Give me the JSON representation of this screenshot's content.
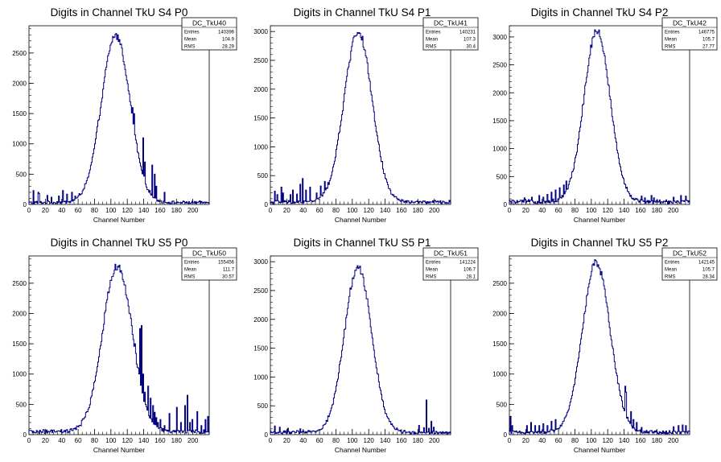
{
  "chart_data": [
    {
      "type": "histogram",
      "title": "Digits in Channel TkU S4 P0",
      "xlabel": "Channel Number",
      "ylabel": "",
      "xlim": [
        0,
        220
      ],
      "ylim": [
        0,
        2950
      ],
      "xticks": [
        0,
        20,
        40,
        60,
        80,
        100,
        120,
        140,
        160,
        180,
        200
      ],
      "yticks": [
        0,
        500,
        1000,
        1500,
        2000,
        2500
      ],
      "stats": {
        "name": "DC_TkU40",
        "rows": [
          {
            "label": "Entries",
            "value": "140396"
          },
          {
            "label": "Mean",
            "value": "104.9"
          },
          {
            "label": "RMS",
            "value": "28.29"
          }
        ]
      },
      "shape": {
        "peak": 2760,
        "center": 106,
        "sigma": 17.5,
        "baseline": 40,
        "pedestal": 80
      },
      "spikes": [
        [
          5,
          230
        ],
        [
          11,
          200
        ],
        [
          12,
          180
        ],
        [
          22,
          150
        ],
        [
          27,
          120
        ],
        [
          36,
          140
        ],
        [
          41,
          230
        ],
        [
          46,
          170
        ],
        [
          52,
          200
        ],
        [
          56,
          140
        ],
        [
          61,
          180
        ],
        [
          66,
          170
        ],
        [
          126,
          1600
        ],
        [
          128,
          1500
        ],
        [
          139,
          1100
        ],
        [
          141,
          700
        ],
        [
          150,
          650
        ],
        [
          153,
          500
        ],
        [
          155,
          300
        ],
        [
          165,
          200
        ]
      ]
    },
    {
      "type": "histogram",
      "title": "Digits in Channel TkU S4 P1",
      "xlabel": "Channel Number",
      "ylabel": "",
      "xlim": [
        0,
        220
      ],
      "ylim": [
        0,
        3100
      ],
      "xticks": [
        0,
        20,
        40,
        60,
        80,
        100,
        120,
        140,
        160,
        180,
        200
      ],
      "yticks": [
        0,
        500,
        1000,
        1500,
        2000,
        2500,
        3000
      ],
      "stats": {
        "name": "DC_TkU41",
        "rows": [
          {
            "label": "Entries",
            "value": "140231"
          },
          {
            "label": "Mean",
            "value": "107.3"
          },
          {
            "label": "RMS",
            "value": "30.4"
          }
        ]
      },
      "shape": {
        "peak": 2960,
        "center": 107,
        "sigma": 17,
        "baseline": 50,
        "pedestal": 40
      },
      "spikes": [
        [
          5,
          230
        ],
        [
          8,
          170
        ],
        [
          13,
          300
        ],
        [
          15,
          200
        ],
        [
          24,
          170
        ],
        [
          27,
          250
        ],
        [
          32,
          180
        ],
        [
          36,
          350
        ],
        [
          39,
          450
        ],
        [
          43,
          250
        ],
        [
          48,
          300
        ],
        [
          56,
          200
        ],
        [
          61,
          320
        ],
        [
          66,
          400
        ],
        [
          70,
          380
        ],
        [
          73,
          370
        ],
        [
          75,
          430
        ],
        [
          76,
          500
        ],
        [
          77,
          650
        ],
        [
          78,
          670
        ],
        [
          79,
          800
        ],
        [
          81,
          700
        ]
      ]
    },
    {
      "type": "histogram",
      "title": "Digits in Channel TkU S4 P2",
      "xlabel": "Channel Number",
      "ylabel": "",
      "xlim": [
        0,
        220
      ],
      "ylim": [
        0,
        3200
      ],
      "xticks": [
        0,
        20,
        40,
        60,
        80,
        100,
        120,
        140,
        160,
        180,
        200
      ],
      "yticks": [
        0,
        500,
        1000,
        1500,
        2000,
        2500,
        3000
      ],
      "stats": {
        "name": "DC_TkU42",
        "rows": [
          {
            "label": "Entries",
            "value": "146775"
          },
          {
            "label": "Mean",
            "value": "105.7"
          },
          {
            "label": "RMS",
            "value": "27.77"
          }
        ]
      },
      "shape": {
        "peak": 3060,
        "center": 107,
        "sigma": 16,
        "baseline": 60,
        "pedestal": 40
      },
      "spikes": [
        [
          18,
          120
        ],
        [
          27,
          130
        ],
        [
          36,
          160
        ],
        [
          41,
          130
        ],
        [
          46,
          180
        ],
        [
          51,
          220
        ],
        [
          56,
          260
        ],
        [
          61,
          300
        ],
        [
          66,
          350
        ],
        [
          69,
          420
        ],
        [
          161,
          150
        ],
        [
          165,
          120
        ],
        [
          173,
          160
        ],
        [
          176,
          120
        ],
        [
          200,
          130
        ],
        [
          209,
          160
        ],
        [
          215,
          150
        ]
      ]
    },
    {
      "type": "histogram",
      "title": "Digits in Channel TkU S5 P0",
      "xlabel": "Channel Number",
      "ylabel": "",
      "xlim": [
        0,
        220
      ],
      "ylim": [
        0,
        2950
      ],
      "xticks": [
        0,
        20,
        40,
        60,
        80,
        100,
        120,
        140,
        160,
        180,
        200
      ],
      "yticks": [
        0,
        500,
        1000,
        1500,
        2000,
        2500
      ],
      "stats": {
        "name": "DC_TkU50",
        "rows": [
          {
            "label": "Entries",
            "value": "155456"
          },
          {
            "label": "Mean",
            "value": "111.7"
          },
          {
            "label": "RMS",
            "value": "30.57"
          }
        ]
      },
      "shape": {
        "peak": 2740,
        "center": 108,
        "sigma": 18,
        "baseline": 60,
        "pedestal": 70
      },
      "spikes": [
        [
          129,
          1500
        ],
        [
          131,
          1000
        ],
        [
          133,
          1100
        ],
        [
          135,
          1750
        ],
        [
          137,
          1800
        ],
        [
          139,
          1000
        ],
        [
          141,
          700
        ],
        [
          145,
          800
        ],
        [
          148,
          600
        ],
        [
          151,
          480
        ],
        [
          153,
          370
        ],
        [
          155,
          280
        ],
        [
          157,
          200
        ],
        [
          160,
          250
        ],
        [
          163,
          100
        ],
        [
          165,
          150
        ],
        [
          171,
          350
        ],
        [
          180,
          450
        ],
        [
          185,
          200
        ],
        [
          190,
          480
        ],
        [
          193,
          650
        ],
        [
          196,
          200
        ],
        [
          199,
          250
        ],
        [
          205,
          380
        ],
        [
          210,
          150
        ],
        [
          215,
          250
        ],
        [
          218,
          300
        ]
      ]
    },
    {
      "type": "histogram",
      "title": "Digits in Channel TkU S5 P1",
      "xlabel": "Channel Number",
      "ylabel": "",
      "xlim": [
        0,
        220
      ],
      "ylim": [
        0,
        3100
      ],
      "xticks": [
        0,
        20,
        40,
        60,
        80,
        100,
        120,
        140,
        160,
        180,
        200
      ],
      "yticks": [
        0,
        500,
        1000,
        1500,
        2000,
        2500,
        3000
      ],
      "stats": {
        "name": "DC_TkU51",
        "rows": [
          {
            "label": "Entries",
            "value": "141224"
          },
          {
            "label": "Mean",
            "value": "106.7"
          },
          {
            "label": "RMS",
            "value": "28.1"
          }
        ]
      },
      "shape": {
        "peak": 2880,
        "center": 107,
        "sigma": 16.5,
        "baseline": 50,
        "pedestal": 30
      },
      "spikes": [
        [
          5,
          150
        ],
        [
          11,
          130
        ],
        [
          21,
          110
        ],
        [
          36,
          100
        ],
        [
          181,
          160
        ],
        [
          187,
          120
        ],
        [
          190,
          600
        ],
        [
          193,
          110
        ],
        [
          196,
          230
        ],
        [
          199,
          130
        ]
      ]
    },
    {
      "type": "histogram",
      "title": "Digits in Channel TkU S5 P2",
      "xlabel": "Channel Number",
      "ylabel": "",
      "xlim": [
        0,
        220
      ],
      "ylim": [
        0,
        2950
      ],
      "xticks": [
        0,
        20,
        40,
        60,
        80,
        100,
        120,
        140,
        160,
        180,
        200
      ],
      "yticks": [
        0,
        500,
        1000,
        1500,
        2000,
        2500
      ],
      "stats": {
        "name": "DC_TkU52",
        "rows": [
          {
            "label": "Entries",
            "value": "142145"
          },
          {
            "label": "Mean",
            "value": "105.7"
          },
          {
            "label": "RMS",
            "value": "28.34"
          }
        ]
      },
      "shape": {
        "peak": 2800,
        "center": 106,
        "sigma": 17,
        "baseline": 50,
        "pedestal": 60
      },
      "spikes": [
        [
          1,
          300
        ],
        [
          3,
          150
        ],
        [
          21,
          150
        ],
        [
          26,
          200
        ],
        [
          31,
          150
        ],
        [
          36,
          150
        ],
        [
          41,
          180
        ],
        [
          46,
          150
        ],
        [
          51,
          220
        ],
        [
          56,
          250
        ],
        [
          140,
          250
        ],
        [
          141,
          800
        ],
        [
          142,
          700
        ],
        [
          143,
          150
        ],
        [
          148,
          380
        ],
        [
          151,
          250
        ],
        [
          155,
          200
        ],
        [
          161,
          120
        ],
        [
          200,
          130
        ],
        [
          206,
          150
        ],
        [
          211,
          160
        ],
        [
          215,
          150
        ]
      ]
    }
  ],
  "colors": {
    "line": "#000080",
    "axis": "#000000",
    "background": "#ffffff"
  }
}
